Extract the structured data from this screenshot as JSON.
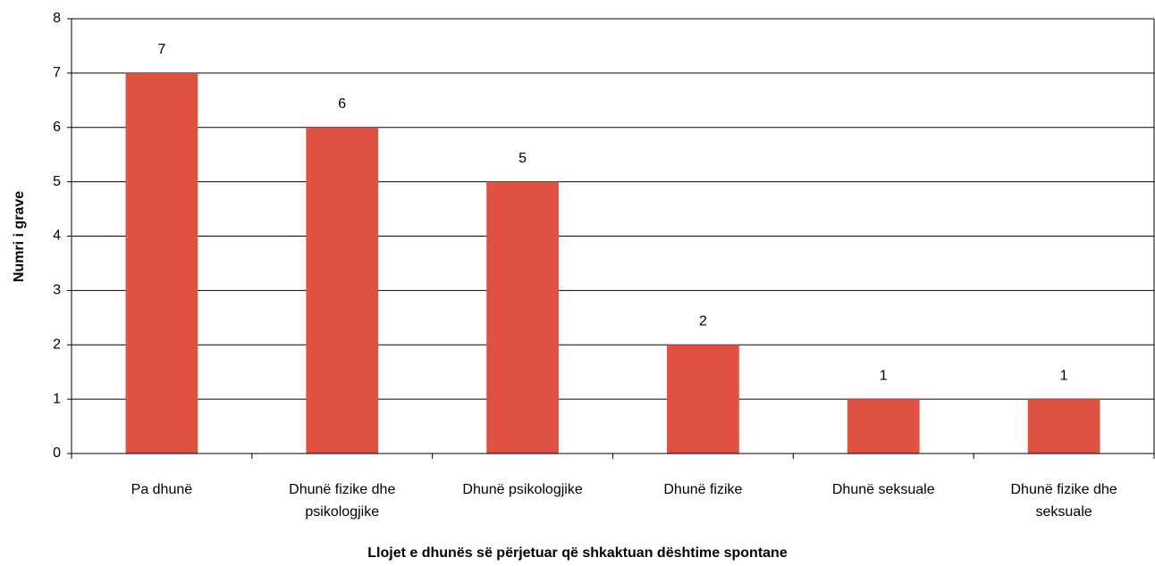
{
  "chart_data": {
    "type": "bar",
    "categories": [
      "Pa dhunë",
      "Dhunë fizike dhe psikologjike",
      "Dhunë psikologjike",
      "Dhunë fizike",
      "Dhunë seksuale",
      "Dhunë fizike dhe seksuale"
    ],
    "values": [
      7,
      6,
      5,
      2,
      1,
      1
    ],
    "color": "#df5140",
    "ylim": [
      0,
      8
    ],
    "yticks": [
      0,
      1,
      2,
      3,
      4,
      5,
      6,
      7,
      8
    ],
    "grid": true,
    "y_label": "Numri i grave",
    "x_label": "Llojet e dhunës së përjetuar që shkaktuan dështime spontane"
  }
}
